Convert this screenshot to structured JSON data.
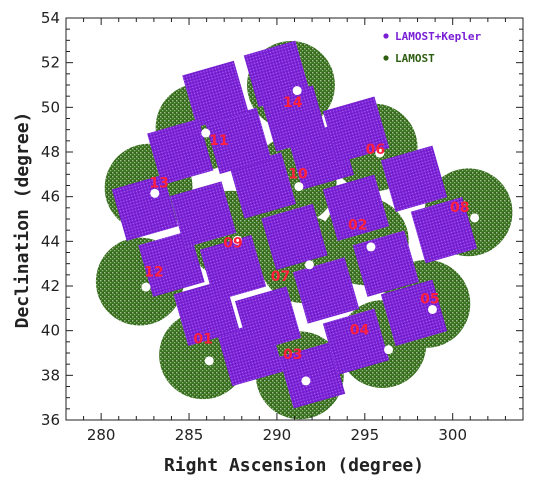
{
  "chart_data": {
    "type": "scatter",
    "xlabel": "Right Ascension (degree)",
    "ylabel": "Declination (degree)",
    "xlim": [
      278,
      304
    ],
    "ylim": [
      36,
      54
    ],
    "x_ticks": [
      280,
      285,
      290,
      295,
      300
    ],
    "y_ticks": [
      36,
      38,
      40,
      42,
      44,
      46,
      48,
      50,
      52,
      54
    ],
    "legend": {
      "position": "top-right",
      "entries": [
        {
          "name": "LAMOST+Kepler",
          "color": "#7a1fd6"
        },
        {
          "name": "LAMOST",
          "color": "#2e5e12"
        }
      ]
    },
    "lamost_fields": [
      {
        "ra": 285.8,
        "dec": 38.9
      },
      {
        "ra": 295.0,
        "dec": 44.0
      },
      {
        "ra": 291.3,
        "dec": 38.0
      },
      {
        "ra": 296.0,
        "dec": 39.4
      },
      {
        "ra": 298.5,
        "dec": 41.2
      },
      {
        "ra": 295.5,
        "dec": 48.2
      },
      {
        "ra": 291.5,
        "dec": 43.2
      },
      {
        "ra": 300.9,
        "dec": 45.3
      },
      {
        "ra": 287.4,
        "dec": 44.3
      },
      {
        "ra": 290.9,
        "dec": 46.7
      },
      {
        "ra": 285.6,
        "dec": 49.1
      },
      {
        "ra": 282.2,
        "dec": 42.2
      },
      {
        "ra": 282.7,
        "dec": 46.4
      },
      {
        "ra": 290.8,
        "dec": 51.0
      }
    ],
    "field_labels": [
      {
        "text": "01",
        "ra": 285.8,
        "dec": 39.6
      },
      {
        "text": "02",
        "ra": 294.6,
        "dec": 44.7
      },
      {
        "text": "03",
        "ra": 290.9,
        "dec": 38.9
      },
      {
        "text": "04",
        "ra": 294.7,
        "dec": 40.0
      },
      {
        "text": "05",
        "ra": 298.7,
        "dec": 41.4
      },
      {
        "text": "06",
        "ra": 295.6,
        "dec": 48.1
      },
      {
        "text": "07",
        "ra": 290.2,
        "dec": 42.4
      },
      {
        "text": "08",
        "ra": 300.4,
        "dec": 45.5
      },
      {
        "text": "09",
        "ra": 287.5,
        "dec": 43.9
      },
      {
        "text": "10",
        "ra": 291.2,
        "dec": 47.0
      },
      {
        "text": "11",
        "ra": 286.7,
        "dec": 48.5
      },
      {
        "text": "12",
        "ra": 283.0,
        "dec": 42.6
      },
      {
        "text": "13",
        "ra": 283.3,
        "dec": 46.6
      },
      {
        "text": "14",
        "ra": 290.9,
        "dec": 50.2
      }
    ],
    "kepler_ccds": [
      {
        "ra": 288.5,
        "dec": 39.0
      },
      {
        "ra": 292.0,
        "dec": 38.0
      },
      {
        "ra": 294.5,
        "dec": 39.5
      },
      {
        "ra": 297.8,
        "dec": 40.8
      },
      {
        "ra": 286.0,
        "dec": 40.8
      },
      {
        "ra": 289.5,
        "dec": 40.5
      },
      {
        "ra": 292.8,
        "dec": 41.8
      },
      {
        "ra": 296.2,
        "dec": 43.0
      },
      {
        "ra": 299.5,
        "dec": 44.5
      },
      {
        "ra": 284.0,
        "dec": 43.0
      },
      {
        "ra": 287.5,
        "dec": 42.8
      },
      {
        "ra": 291.0,
        "dec": 44.2
      },
      {
        "ra": 294.5,
        "dec": 45.5
      },
      {
        "ra": 297.8,
        "dec": 46.8
      },
      {
        "ra": 282.5,
        "dec": 45.5
      },
      {
        "ra": 285.8,
        "dec": 45.2
      },
      {
        "ra": 289.2,
        "dec": 46.5
      },
      {
        "ra": 292.5,
        "dec": 47.8
      },
      {
        "ra": 284.5,
        "dec": 48.0
      },
      {
        "ra": 287.8,
        "dec": 48.5
      },
      {
        "ra": 291.0,
        "dec": 49.5
      },
      {
        "ra": 294.5,
        "dec": 49.0
      },
      {
        "ra": 286.5,
        "dec": 50.6
      },
      {
        "ra": 290.0,
        "dec": 51.5
      }
    ],
    "grid": false
  }
}
